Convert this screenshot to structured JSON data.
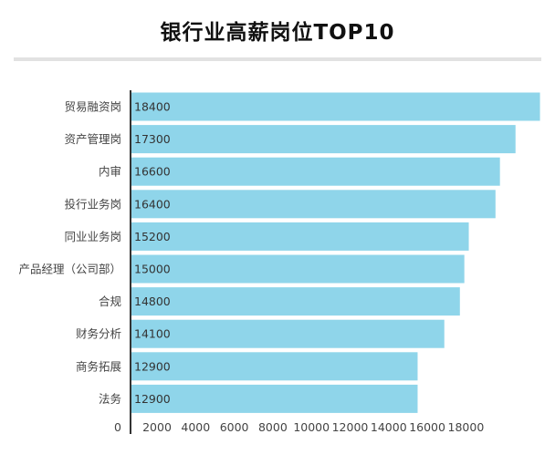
{
  "chart_data": {
    "type": "bar",
    "orientation": "horizontal",
    "title": "银行业高薪岗位TOP10",
    "categories": [
      "贸易融资岗",
      "资产管理岗",
      "内审",
      "投行业务岗",
      "同业业务岗",
      "产品经理（公司部）",
      "合规",
      "财务分析",
      "商务拓展",
      "法务"
    ],
    "values": [
      18400,
      17300,
      16600,
      16400,
      15200,
      15000,
      14800,
      14100,
      12900,
      12900
    ],
    "xticks": [
      "0",
      "2000",
      "4000",
      "6000",
      "8000",
      "10000",
      "12000",
      "14000",
      "16000",
      "18000"
    ],
    "xlabel": "",
    "ylabel": "",
    "grid": false,
    "colors": {
      "bar": "#8fd5ea",
      "axis": "#333333"
    }
  }
}
